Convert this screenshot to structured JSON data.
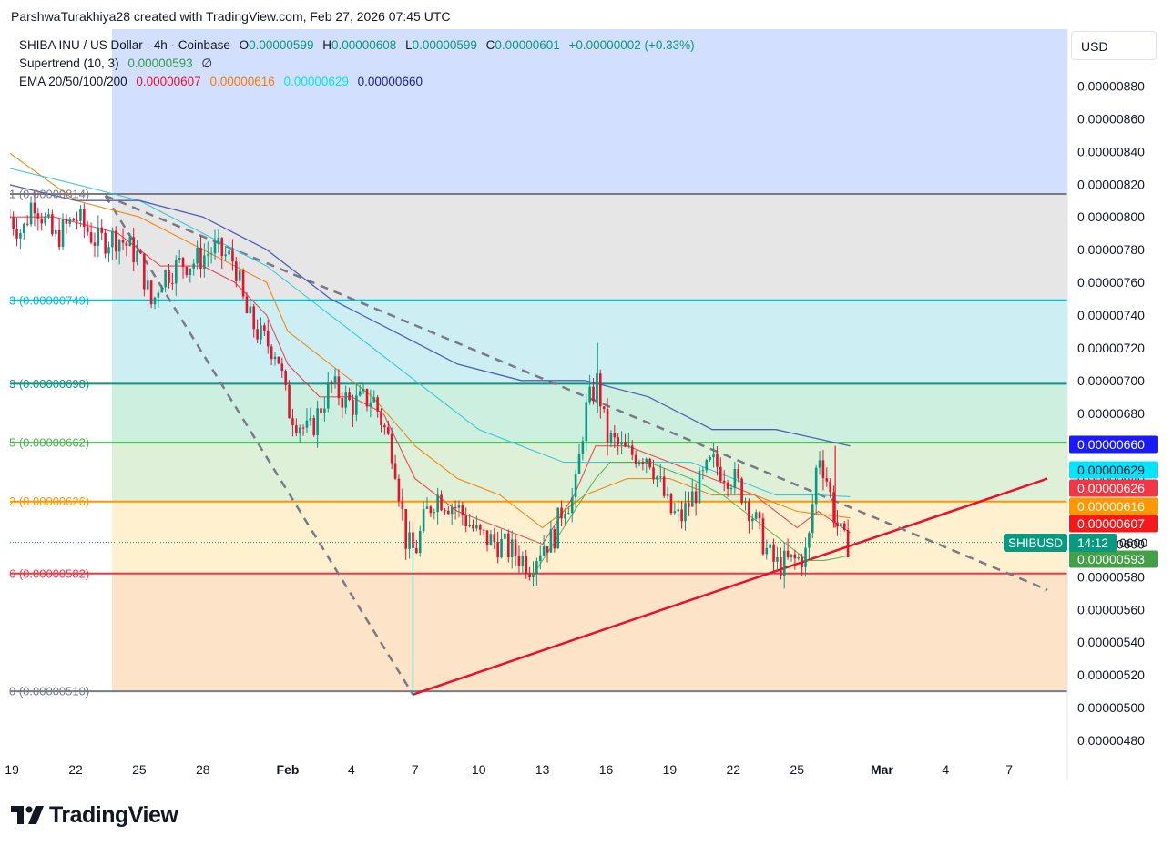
{
  "caption": "ParshwaTurakhiya28 created with TradingView.com, Feb 27, 2026 07:45 UTC",
  "legend": {
    "symbol": "SHIBA INU / US Dollar · 4h · Coinbase",
    "o_label": "O",
    "o": "0.00000599",
    "h_label": "H",
    "h": "0.00000608",
    "l_label": "L",
    "l": "0.00000599",
    "c_label": "C",
    "c": "0.00000601",
    "change": "+0.00000002 (+0.33%)",
    "supertrend_label": "Supertrend (10, 3)",
    "supertrend_value": "0.00000593",
    "supertrend_extra": "∅",
    "ema_label": "EMA 20/50/100/200",
    "ema20": "0.00000607",
    "ema50": "0.00000616",
    "ema100": "0.00000629",
    "ema200": "0.00000660"
  },
  "currency": "USD",
  "brand": "TradingView",
  "colors": {
    "up": "#089981",
    "down": "#e8112d",
    "ema20": "#f23645",
    "ema50": "#f57c00",
    "ema100": "#26c6da",
    "ema200": "#3f51b5",
    "supertrend": "#4caf50",
    "trendline": "#e8112d",
    "dashed": "#787b86"
  },
  "chart_data": {
    "type": "candlestick",
    "symbol": "SHIBUSD",
    "timeframe": "4h",
    "y_axis": {
      "min": 4.7e-06,
      "max": 8.9e-06,
      "ticks": [
        "0.00000880",
        "0.00000860",
        "0.00000840",
        "0.00000820",
        "0.00000800",
        "0.00000780",
        "0.00000760",
        "0.00000740",
        "0.00000720",
        "0.00000700",
        "0.00000680",
        "0.00000660",
        "0.00000640",
        "0.00000620",
        "0.00000600",
        "0.00000580",
        "0.00000560",
        "0.00000540",
        "0.00000520",
        "0.00000500",
        "0.00000480"
      ]
    },
    "x_axis": {
      "ticks": [
        "19",
        "22",
        "25",
        "28",
        "Feb",
        "4",
        "7",
        "10",
        "13",
        "16",
        "19",
        "22",
        "25",
        "Mar",
        "4",
        "7"
      ],
      "tick_days": [
        -13,
        -10,
        -7,
        -4,
        0,
        3,
        6,
        9,
        12,
        15,
        18,
        21,
        24,
        28,
        31,
        34
      ]
    },
    "fib_levels": [
      {
        "label": "(0.00000814)",
        "prefix": "1",
        "value": 8.14e-06,
        "fill": "#e6e6e6",
        "line": "#787b86"
      },
      {
        "label": "(0.00000749)",
        "prefix": "3",
        "value": 7.49e-06,
        "fill": "#cdeff3",
        "line": "#00bcd4"
      },
      {
        "label": "(0.00000698)",
        "prefix": "3",
        "value": 6.98e-06,
        "fill": "#cdefe0",
        "line": "#089981"
      },
      {
        "label": "(0.00000662)",
        "prefix": "5",
        "value": 6.62e-06,
        "fill": "#def1d8",
        "line": "#4caf50"
      },
      {
        "label": "(0.00000626)",
        "prefix": "2",
        "value": 6.26e-06,
        "fill": "#fff0cf",
        "line": "#ff9800"
      },
      {
        "label": "(0.00000582)",
        "prefix": "6",
        "value": 5.82e-06,
        "fill": "#fde3c8",
        "line": "#f23645"
      },
      {
        "label": "(0.00000510)",
        "prefix": "0",
        "value": 5.1e-06,
        "fill": "#fbd8db",
        "line": "#787b86"
      }
    ],
    "price_tags": [
      {
        "value": 6.6e-06,
        "text": "0.00000660",
        "color": "#1a1aff"
      },
      {
        "value": 6.29e-06,
        "text": "0.00000629",
        "color": "#00e5ff"
      },
      {
        "value": 6.26e-06,
        "text": "0.00000626",
        "color": "#f23645"
      },
      {
        "value": 6.16e-06,
        "text": "0.00000616",
        "color": "#ff9800"
      },
      {
        "value": 6.07e-06,
        "text": "0.00000607",
        "color": "#f21a1a"
      },
      {
        "value": 5.93e-06,
        "text": "0.00000593",
        "color": "#43a047"
      }
    ],
    "last_price": {
      "value": 6.01e-06,
      "symbol": "SHIBUSD",
      "countdown": "14:12",
      "partial": "0600"
    },
    "trendlines": [
      {
        "style": "solid",
        "color": "#e8112d",
        "from": {
          "day": 5.9,
          "price": 5.08e-06
        },
        "to": {
          "day": 35.8,
          "price": 6.4e-06
        }
      },
      {
        "style": "dashed",
        "color": "#787b86",
        "from": {
          "day": -8.6,
          "price": 8.13e-06
        },
        "to": {
          "day": 35.8,
          "price": 5.72e-06
        }
      },
      {
        "style": "dashed",
        "color": "#787b86",
        "from": {
          "day": -8.6,
          "price": 8.13e-06
        },
        "to": {
          "day": 5.9,
          "price": 5.08e-06
        }
      }
    ],
    "price_path": {
      "days": [
        -13.1,
        -12.5,
        -12,
        -11,
        -10,
        -9,
        -8,
        -7,
        -6.4,
        -6,
        -5,
        -4.5,
        -3.5,
        -2.5,
        -2,
        -1.2,
        -0.5,
        0,
        1,
        2,
        3,
        4,
        5,
        5.6,
        6,
        6.5,
        7,
        8,
        9,
        10,
        11,
        11.4,
        12,
        12.5,
        13,
        13.5,
        14,
        14.6,
        15,
        16,
        17,
        18,
        18.5,
        19,
        20,
        21,
        21.5,
        22,
        22.6,
        23,
        24,
        24.5,
        25,
        25.4,
        25.8,
        26.2,
        26.5
      ],
      "close": [
        8e-06,
        7.9e-06,
        8.12e-06,
        7.86e-06,
        8e-06,
        7.85e-06,
        7.88e-06,
        7.75e-06,
        7.45e-06,
        7.63e-06,
        7.72e-06,
        7.72e-06,
        7.8e-06,
        7.73e-06,
        7.42e-06,
        7.25e-06,
        7.18e-06,
        6.83e-06,
        6.67e-06,
        6.97e-06,
        6.85e-06,
        6.9e-06,
        6.55e-06,
        6e-06,
        5.95e-06,
        6.18e-06,
        6.3e-06,
        6.22e-06,
        6.05e-06,
        6e-06,
        5.92e-06,
        5.87e-06,
        6e-06,
        6.03e-06,
        6.25e-06,
        6.28e-06,
        6.8e-06,
        7e-06,
        6.66e-06,
        6.55e-06,
        6.55e-06,
        6.2e-06,
        6.15e-06,
        6.27e-06,
        6.5e-06,
        6.4e-06,
        6.3e-06,
        6.15e-06,
        5.95e-06,
        5.87e-06,
        5.9e-06,
        5.95e-06,
        6.58e-06,
        6.4e-06,
        6.15e-06,
        6e-06,
        6.01e-06
      ]
    },
    "ema_paths": {
      "ema20": {
        "days": [
          -13.2,
          -11,
          -8,
          -6,
          -4,
          -2.5,
          -1,
          0,
          1.5,
          3,
          4.5,
          6,
          8,
          10,
          12,
          13.5,
          14.5,
          16,
          18,
          20,
          22,
          24,
          25,
          26.5
        ],
        "values": [
          8e-06,
          8e-06,
          7.9e-06,
          7.7e-06,
          7.7e-06,
          7.6e-06,
          7.4e-06,
          7.1e-06,
          6.9e-06,
          6.9e-06,
          6.8e-06,
          6.4e-06,
          6.2e-06,
          6.1e-06,
          6e-06,
          6.3e-06,
          6.6e-06,
          6.6e-06,
          6.5e-06,
          6.4e-06,
          6.3e-06,
          6.1e-06,
          6.2e-06,
          6.07e-06
        ]
      },
      "ema50": {
        "days": [
          -13.2,
          -10,
          -7,
          -4,
          -1,
          0,
          2,
          4,
          6,
          8,
          10,
          12,
          14,
          16,
          18,
          20,
          22,
          24,
          26.5
        ],
        "values": [
          8.4e-06,
          8.1e-06,
          8e-06,
          7.8e-06,
          7.6e-06,
          7.3e-06,
          7.1e-06,
          6.9e-06,
          6.6e-06,
          6.4e-06,
          6.3e-06,
          6.1e-06,
          6.3e-06,
          6.4e-06,
          6.4e-06,
          6.3e-06,
          6.3e-06,
          6.2e-06,
          6.16e-06
        ]
      },
      "ema100": {
        "days": [
          -13.2,
          -10,
          -7,
          -4,
          -1,
          1,
          3,
          5,
          7,
          9,
          11,
          13,
          15,
          17,
          19,
          21,
          23,
          25,
          26.5
        ],
        "values": [
          8.3e-06,
          8.2e-06,
          8.1e-06,
          7.9e-06,
          7.7e-06,
          7.5e-06,
          7.3e-06,
          7.1e-06,
          6.9e-06,
          6.7e-06,
          6.6e-06,
          6.5e-06,
          6.5e-06,
          6.5e-06,
          6.5e-06,
          6.4e-06,
          6.3e-06,
          6.3e-06,
          6.29e-06
        ]
      },
      "ema200": {
        "days": [
          -13.2,
          -10,
          -7,
          -4,
          -1,
          2,
          5,
          8,
          11,
          14,
          17,
          20,
          23,
          26.5
        ],
        "values": [
          8.2e-06,
          8.1e-06,
          8.1e-06,
          8e-06,
          7.8e-06,
          7.5e-06,
          7.3e-06,
          7.1e-06,
          7e-06,
          7e-06,
          6.9e-06,
          6.7e-06,
          6.7e-06,
          6.6e-06
        ]
      },
      "supertrend": {
        "days": [
          11.5,
          12.5,
          13.5,
          14.5,
          15.2,
          17,
          19,
          20.5,
          21.5,
          22.5,
          23.5,
          24.5,
          25.3,
          26.5
        ],
        "values": [
          5.8e-06,
          6e-06,
          6.2e-06,
          6.4e-06,
          6.5e-06,
          6.5e-06,
          6.4e-06,
          6.3e-06,
          6.2e-06,
          6.1e-06,
          6e-06,
          5.9e-06,
          5.9e-06,
          5.93e-06
        ]
      }
    },
    "series": [
      {
        "name": "EMA 20",
        "value": 6.07e-06
      },
      {
        "name": "EMA 50",
        "value": 6.16e-06
      },
      {
        "name": "EMA 100",
        "value": 6.29e-06
      },
      {
        "name": "EMA 200",
        "value": 6.6e-06
      },
      {
        "name": "Supertrend (10, 3)",
        "value": 5.93e-06
      }
    ],
    "grid": false,
    "legend_position": "top-left"
  }
}
